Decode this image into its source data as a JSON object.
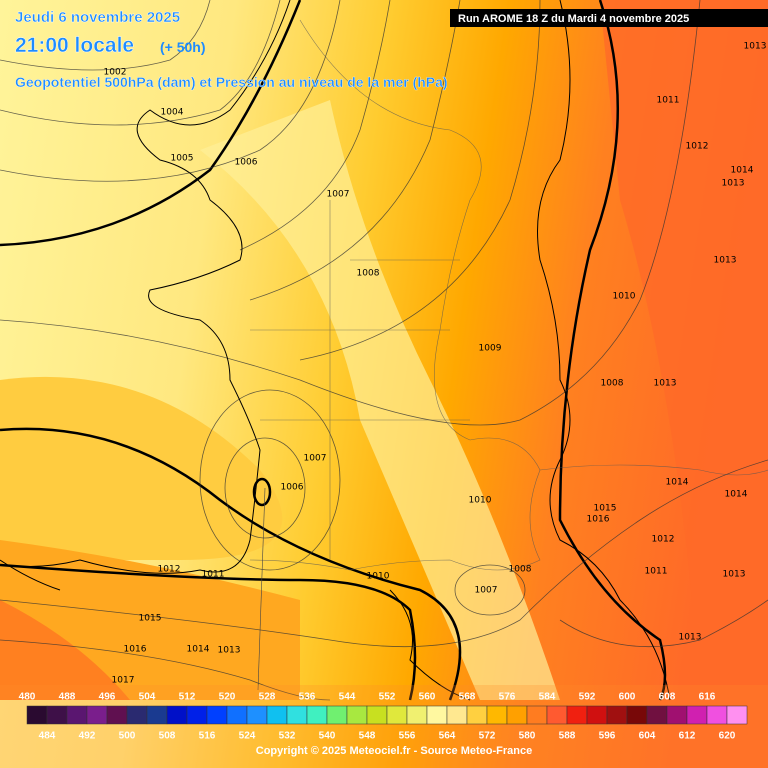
{
  "header": {
    "date": "Jeudi 6 novembre 2025",
    "time": "21:00 locale",
    "lead": "(+ 50h)",
    "subtitle": "Geopotentiel 500hPa (dam) et Pression au niveau de la mer (hPa)",
    "run": "Run AROME 18 Z du Mardi 4 novembre 2025"
  },
  "isobars": [
    1002,
    1004,
    1005,
    1006,
    1007,
    1008,
    1009,
    1011,
    1012,
    1013,
    1014,
    1013,
    1013,
    1010,
    1008,
    1013,
    1007,
    1006,
    1010,
    1014,
    1014,
    1015,
    1016,
    1012,
    1011,
    1013,
    1012,
    1011,
    1010,
    1008,
    1007,
    1015,
    1016,
    1014,
    1013,
    1017,
    1013
  ],
  "scale": {
    "values": [
      480,
      484,
      488,
      492,
      496,
      500,
      504,
      508,
      512,
      516,
      520,
      524,
      528,
      532,
      536,
      540,
      544,
      548,
      552,
      556,
      560,
      564,
      568,
      572,
      576,
      580,
      584,
      588,
      592,
      596,
      600,
      604,
      608,
      612,
      616,
      620
    ],
    "colors": [
      "#2a0a30",
      "#3e1048",
      "#5a1670",
      "#7a1e8c",
      "#601050",
      "#2a2a70",
      "#1a3a90",
      "#0010c8",
      "#0020e8",
      "#0040ff",
      "#1070ff",
      "#1e90ff",
      "#10c0f0",
      "#30e0e0",
      "#40f0c0",
      "#70f070",
      "#a8e840",
      "#c8e020",
      "#e0e83c",
      "#f0f070",
      "#fff8a0",
      "#ffe890",
      "#ffd040",
      "#ffb800",
      "#ffa000",
      "#ff7c20",
      "#ff5a30",
      "#f02010",
      "#d01010",
      "#a01010",
      "#780808",
      "#701040",
      "#a01070",
      "#d020b0",
      "#f050e0",
      "#ff90f0"
    ]
  },
  "footer": {
    "copyright": "Copyright © 2025 Meteociel.fr - Source Meteo-France"
  }
}
